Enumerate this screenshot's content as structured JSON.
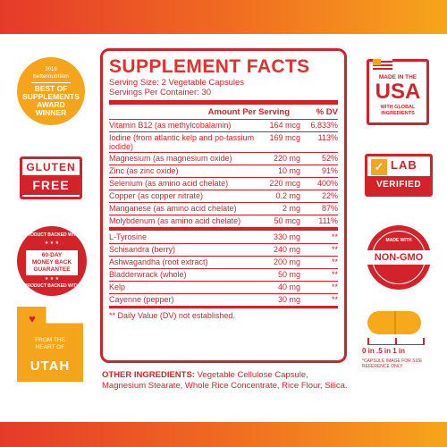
{
  "colors": {
    "brand_red": "#d2232a",
    "accent_orange": "#f4a51c"
  },
  "facts": {
    "title": "SUPPLEMENT FACTS",
    "serving_size": "Serving Size: 2 Vegetable Capsules",
    "servings_per_container": "Servings Per Container: 30",
    "header_amount": "Amount Per Serving",
    "header_dv": "% DV",
    "rows": [
      {
        "name": "Vitamin B12 (as methylcobalamin)",
        "amount": "164 mcg",
        "dv": "6,833%"
      },
      {
        "name": "Iodine (from atlantic kelp and po-tassium iodide)",
        "amount": "169 mcg",
        "dv": "113%"
      },
      {
        "name": "Magnesium (as magnesium oxide)",
        "amount": "220 mg",
        "dv": "52%"
      },
      {
        "name": "Zinc (as zinc oxide)",
        "amount": "10 mg",
        "dv": "91%"
      },
      {
        "name": "Selenium (as amino acid chelate)",
        "amount": "220 mcg",
        "dv": "400%"
      },
      {
        "name": "Copper (as copper nitrate)",
        "amount": "0.2 mg",
        "dv": "22%"
      },
      {
        "name": "Manganese (as amino acid chelate)",
        "amount": "2 mg",
        "dv": "87%"
      },
      {
        "name": "Molybdenum (as amino acid chelate)",
        "amount": "50 mcg",
        "dv": "111%"
      },
      {
        "name": "L-Tyrosine",
        "amount": "330 mg",
        "dv": "**"
      },
      {
        "name": "Schisandra (berry)",
        "amount": "240 mg",
        "dv": "**"
      },
      {
        "name": "Ashwagandha (root extract)",
        "amount": "200 mg",
        "dv": "**"
      },
      {
        "name": "Bladderwrack (whole)",
        "amount": "50 mg",
        "dv": "**"
      },
      {
        "name": "Kelp",
        "amount": "40 mg",
        "dv": "**"
      },
      {
        "name": "Cayenne (pepper)",
        "amount": "30 mg",
        "dv": "**"
      }
    ],
    "footnote": "** Daily Value (DV) not established."
  },
  "other_ingredients": {
    "label": "OTHER INGREDIENTS:",
    "text": "Vegetable Cellulose Capsule, Magnesium Stearate, Whole Rice Concentrate, Rice Flour, Silica."
  },
  "badges": {
    "best": {
      "year": "2018",
      "brand": "betternutrition",
      "line1": "BEST OF",
      "line2": "SUPPLEMENTS",
      "line3": "AWARD",
      "line4": "WINNER"
    },
    "gluten": {
      "line1": "GLUTEN",
      "line2": "FREE"
    },
    "money": {
      "ring": "PRODUCT BACKED WITH",
      "line1": "60-DAY",
      "line2": "MONEY BACK",
      "line3": "GUARANTEE"
    },
    "utah": {
      "line1": "FROM THE",
      "line2": "HEART OF",
      "line3": "UTAH"
    },
    "usa": {
      "line1": "MADE IN THE",
      "line2": "USA",
      "line3": "WITH GLOBAL",
      "line4": "INGREDIENTS"
    },
    "lab": {
      "line1": "LAB",
      "line2": "VERIFIED"
    },
    "nongmo": {
      "line1": "MADE WITH",
      "line2": "NON-GMO"
    }
  },
  "capsule": {
    "scale": "0 in  .5 in  1 in",
    "note": "*CAPSULE IMAGE FOR SIZE REFERENCE ONLY"
  }
}
